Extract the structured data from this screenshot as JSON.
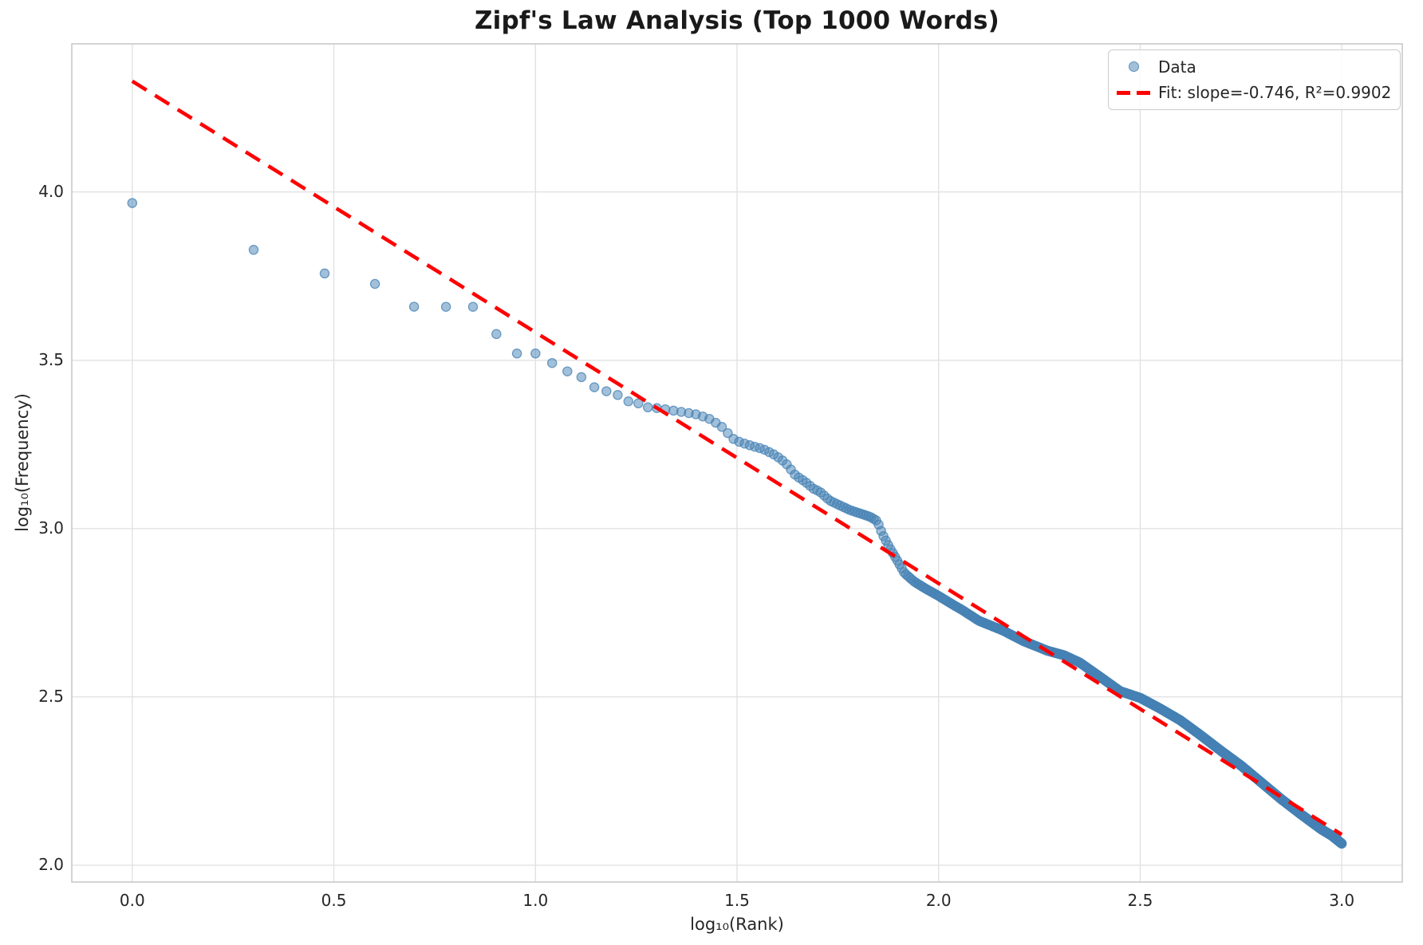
{
  "chart_data": {
    "type": "scatter",
    "title": "Zipf's Law Analysis (Top 1000 Words)",
    "xlabel": "log₁₀(Rank)",
    "ylabel": "log₁₀(Frequency)",
    "xlim": [
      -0.15,
      3.15
    ],
    "ylim": [
      1.95,
      4.44
    ],
    "x_ticks": [
      0.0,
      0.5,
      1.0,
      1.5,
      2.0,
      2.5,
      3.0
    ],
    "x_tick_labels": [
      "0.0",
      "0.5",
      "1.0",
      "1.5",
      "2.0",
      "2.5",
      "3.0"
    ],
    "y_ticks": [
      2.0,
      2.5,
      3.0,
      3.5,
      4.0
    ],
    "y_tick_labels": [
      "2.0",
      "2.5",
      "3.0",
      "3.5",
      "4.0"
    ],
    "grid": true,
    "legend": {
      "position": "upper right",
      "entries": [
        {
          "label": "Data",
          "marker": "circle"
        },
        {
          "label": "Fit: slope=-0.746, R²=0.9902",
          "marker": "dashed-line"
        }
      ]
    },
    "colors": {
      "scatter": "#4682b4",
      "fit_line": "#ff0000",
      "grid": "#e2e2e2",
      "spine": "#c9c9c9",
      "text": "#262626"
    },
    "series": [
      {
        "name": "Data",
        "type": "scatter",
        "color": "#4682b4",
        "alpha": 0.5,
        "n_points": 1000,
        "x_is": "log10(rank) for rank = 1..1000",
        "anchors_note": "piecewise-linear curve [log10(rank), log10(frequency)] read from plot; points for every rank lie on this curve",
        "anchors": [
          [
            0.0,
            3.967
          ],
          [
            0.301,
            3.828
          ],
          [
            0.477,
            3.758
          ],
          [
            0.602,
            3.727
          ],
          [
            0.699,
            3.659
          ],
          [
            0.778,
            3.659
          ],
          [
            0.845,
            3.659
          ],
          [
            0.903,
            3.578
          ],
          [
            0.954,
            3.52
          ],
          [
            1.0,
            3.52
          ],
          [
            1.041,
            3.492
          ],
          [
            1.079,
            3.467
          ],
          [
            1.114,
            3.45
          ],
          [
            1.146,
            3.42
          ],
          [
            1.176,
            3.408
          ],
          [
            1.204,
            3.397
          ],
          [
            1.23,
            3.378
          ],
          [
            1.255,
            3.372
          ],
          [
            1.279,
            3.36
          ],
          [
            1.301,
            3.358
          ],
          [
            1.33,
            3.353
          ],
          [
            1.36,
            3.347
          ],
          [
            1.4,
            3.339
          ],
          [
            1.43,
            3.327
          ],
          [
            1.46,
            3.305
          ],
          [
            1.48,
            3.28
          ],
          [
            1.495,
            3.262
          ],
          [
            1.53,
            3.248
          ],
          [
            1.565,
            3.236
          ],
          [
            1.595,
            3.218
          ],
          [
            1.62,
            3.196
          ],
          [
            1.645,
            3.158
          ],
          [
            1.668,
            3.14
          ],
          [
            1.69,
            3.118
          ],
          [
            1.705,
            3.11
          ],
          [
            1.73,
            3.083
          ],
          [
            1.78,
            3.055
          ],
          [
            1.83,
            3.035
          ],
          [
            1.848,
            3.022
          ],
          [
            1.86,
            2.985
          ],
          [
            1.88,
            2.94
          ],
          [
            1.9,
            2.9
          ],
          [
            1.915,
            2.868
          ],
          [
            1.94,
            2.842
          ],
          [
            1.97,
            2.82
          ],
          [
            2.0,
            2.8
          ],
          [
            2.03,
            2.778
          ],
          [
            2.06,
            2.757
          ],
          [
            2.1,
            2.726
          ],
          [
            2.16,
            2.697
          ],
          [
            2.21,
            2.666
          ],
          [
            2.27,
            2.637
          ],
          [
            2.31,
            2.624
          ],
          [
            2.35,
            2.602
          ],
          [
            2.4,
            2.56
          ],
          [
            2.45,
            2.517
          ],
          [
            2.5,
            2.497
          ],
          [
            2.55,
            2.465
          ],
          [
            2.6,
            2.43
          ],
          [
            2.65,
            2.386
          ],
          [
            2.7,
            2.34
          ],
          [
            2.75,
            2.296
          ],
          [
            2.8,
            2.246
          ],
          [
            2.85,
            2.196
          ],
          [
            2.9,
            2.15
          ],
          [
            2.95,
            2.106
          ],
          [
            2.975,
            2.088
          ],
          [
            3.0,
            2.064
          ]
        ]
      },
      {
        "name": "Fit",
        "type": "line",
        "style": "dashed",
        "color": "#ff0000",
        "slope": -0.746,
        "intercept": 4.329,
        "r_squared": 0.9902,
        "x_range": [
          0.0,
          3.0
        ]
      }
    ]
  }
}
